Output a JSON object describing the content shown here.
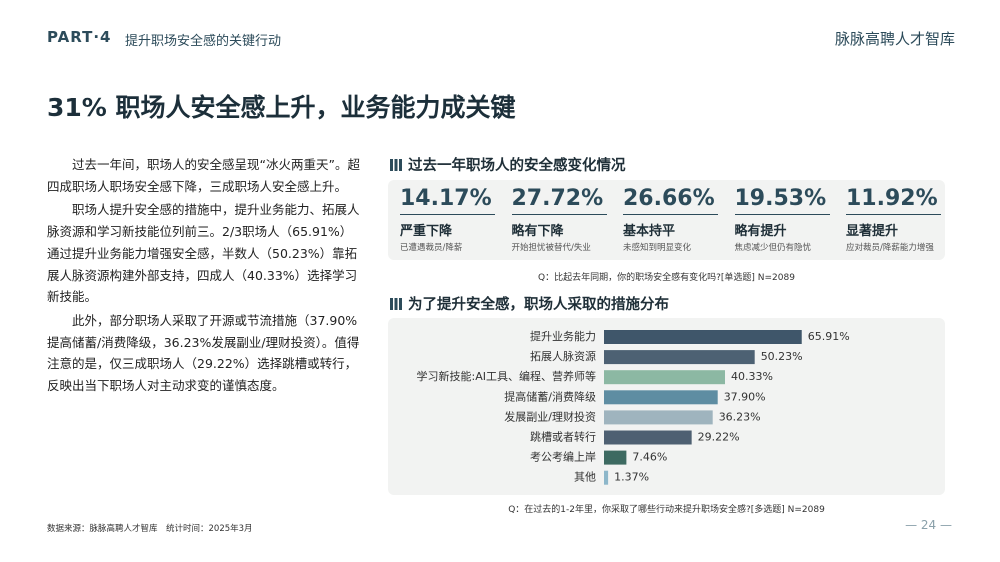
{
  "header": {
    "part": "PART·4",
    "section": "提升职场安全感的关键行动",
    "brand": "脉脉高聘人才智库"
  },
  "headline": "31% 职场人安全感上升，业务能力成关键",
  "body": [
    "过去一年间，职场人的安全感呈现“冰火两重天”。超四成职场人职场安全感下降，三成职场人安全感上升。",
    "职场人提升安全感的措施中，提升业务能力、拓展人脉资源和学习新技能位列前三。2/3职场人（65.91%）通过提升业务能力增强安全感，半数人（50.23%）靠拓展人脉资源构建外部支持，四成人（40.33%）选择学习新技能。",
    "此外，部分职场人采取了开源或节流措施（37.90%提高储蓄/消费降级，36.23%发展副业/理财投资）。值得注意的是，仅三成职场人（29.22%）选择跳槽或转行，反映出当下职场人对主动求变的谨慎态度。"
  ],
  "stats": {
    "title": "过去一年职场人的安全感变化情况",
    "items": [
      {
        "value": "14.17%",
        "label": "严重下降",
        "note": "已遭遇裁员/降薪"
      },
      {
        "value": "27.72%",
        "label": "略有下降",
        "note": "开始担忧被替代/失业"
      },
      {
        "value": "26.66%",
        "label": "基本持平",
        "note": "未感知到明显变化"
      },
      {
        "value": "19.53%",
        "label": "略有提升",
        "note": "焦虑减少但仍有隐忧"
      },
      {
        "value": "11.92%",
        "label": "显著提升",
        "note": "应对裁员/降薪能力增强"
      }
    ],
    "question": "Q：比起去年同期，你的职场安全感有变化吗?[单选题]     N=2089"
  },
  "chart_data": {
    "type": "bar",
    "orientation": "horizontal",
    "title": "为了提升安全感，职场人采取的措施分布",
    "categories": [
      "提升业务能力",
      "拓展人脉资源",
      "学习新技能:AI工具、编程、营养师等",
      "提高储蓄/消费降级",
      "发展副业/理财投资",
      "跳槽或者转行",
      "考公考编上岸",
      "其他"
    ],
    "values": [
      65.91,
      50.23,
      40.33,
      37.9,
      36.23,
      29.22,
      7.46,
      1.37
    ],
    "value_labels": [
      "65.91%",
      "50.23%",
      "40.33%",
      "37.90%",
      "36.23%",
      "29.22%",
      "7.46%",
      "1.37%"
    ],
    "colors": [
      "#3f566a",
      "#4d6173",
      "#8cb8a3",
      "#5e8da2",
      "#9fb4be",
      "#4e6072",
      "#3d6a61",
      "#8db7ca"
    ],
    "note": "Q：在过去的1-2年里，你采取了哪些行动来提升职场安全感?[多选题]     N=2089"
  },
  "footer": {
    "source": "数据来源：脉脉高聘人才智库",
    "time": "统计时间：2025年3月",
    "page": "— 24 —"
  }
}
